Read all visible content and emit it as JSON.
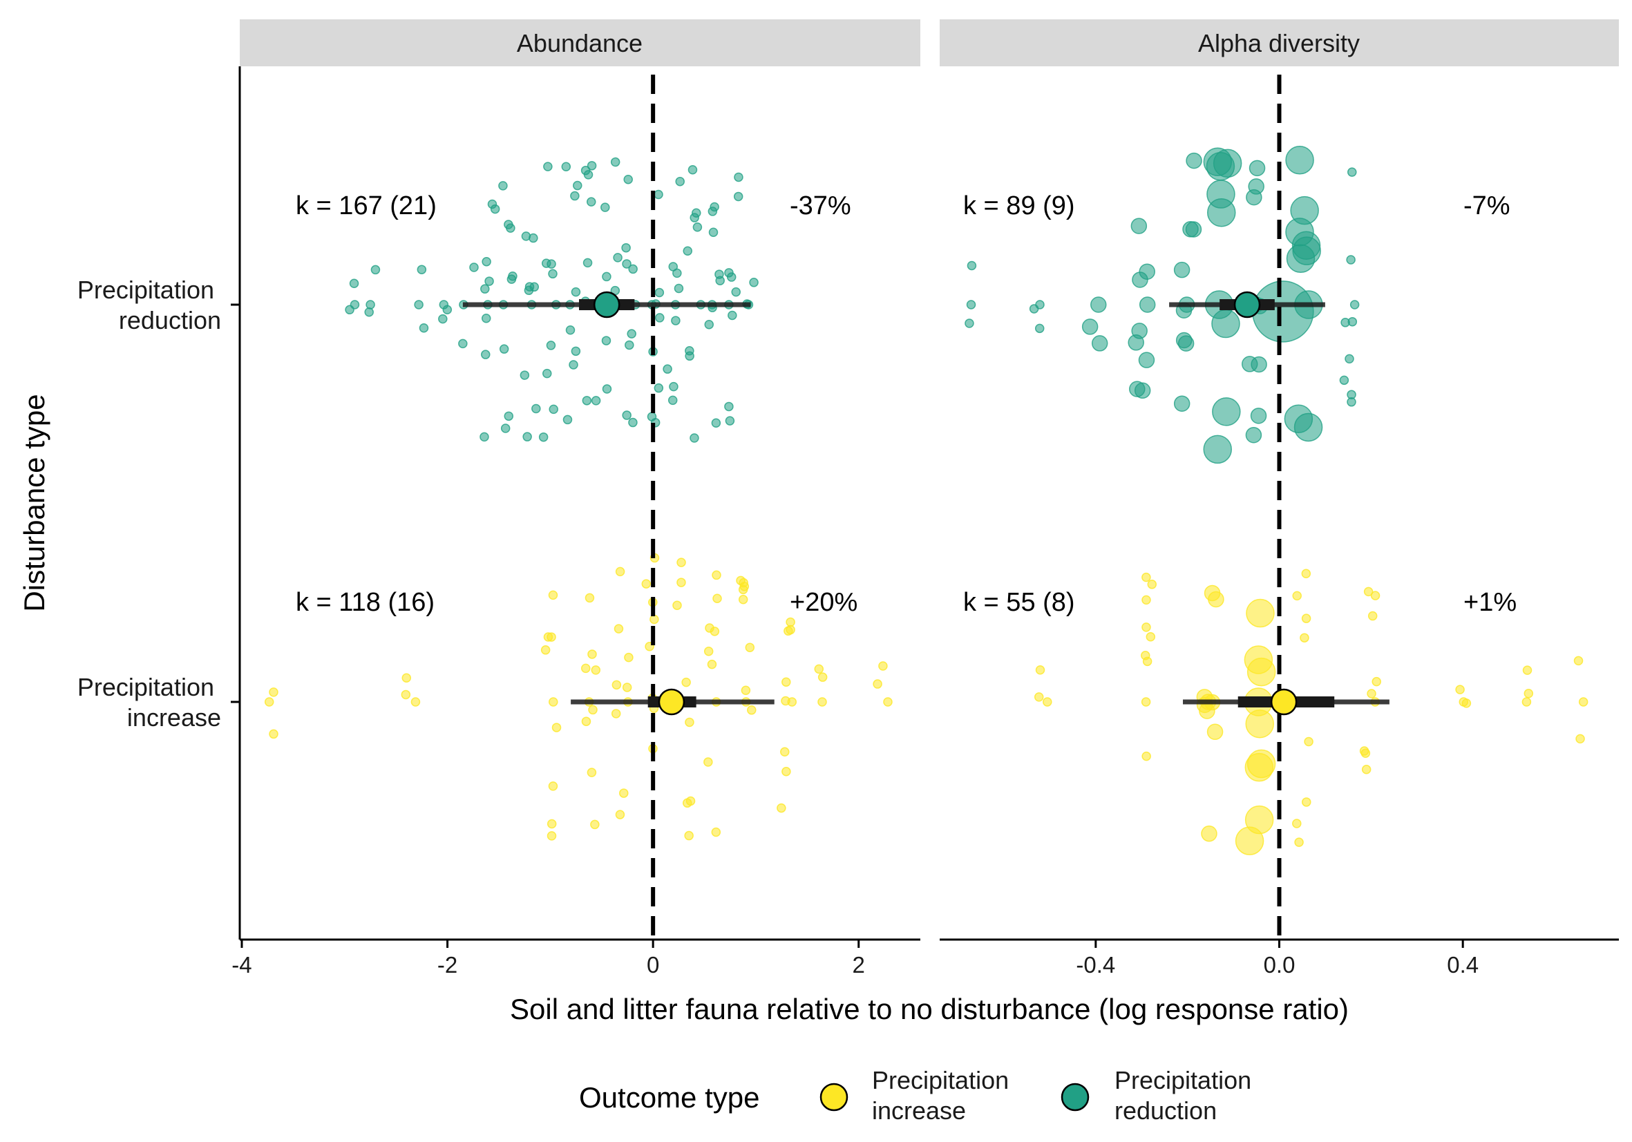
{
  "chart_data": {
    "type": "scatter",
    "subtype": "orchard plot (meta-analysis) with pooled estimate, confidence and prediction intervals",
    "xlabel": "Soil and litter fauna relative to no disturbance (log response ratio)",
    "ylabel": "Disturbance type",
    "y_categories": [
      "Precipitation reduction",
      "Precipitation increase"
    ],
    "y_category_lines": [
      [
        "Precipitation",
        "reduction"
      ],
      [
        "Precipitation",
        "increase"
      ]
    ],
    "grid": false,
    "legend": {
      "title": "Outcome type",
      "placement": "bottom",
      "entries": [
        {
          "label_lines": [
            "Precipitation",
            "increase"
          ],
          "color": "#FDE725"
        },
        {
          "label_lines": [
            "Precipitation",
            "reduction"
          ],
          "color": "#21A085"
        }
      ]
    },
    "colors": {
      "Precipitation reduction": "#21A085",
      "Precipitation increase": "#FDE725",
      "reference_line": "#000000",
      "interval": "#1a1a1a",
      "strip": "#d9d9d9"
    },
    "facets": [
      {
        "title": "Abundance",
        "xlim": [
          -4.02,
          2.6
        ],
        "xticks": [
          -4,
          -2,
          0,
          2
        ],
        "xtick_labels": [
          "-4",
          "-2",
          "0",
          "2"
        ],
        "reference_x": 0,
        "groups": [
          {
            "category": "Precipitation reduction",
            "k_label": "k = 167 (21)",
            "effect_label": "-37%",
            "estimate": -0.45,
            "ci": [
              -0.72,
              -0.18
            ],
            "pi": [
              -1.85,
              0.95
            ],
            "n_points": 167,
            "points_approx": [
              {
                "x": -2.9,
                "size": "small"
              },
              {
                "x": -2.75,
                "size": "small"
              },
              {
                "x": -2.25,
                "size": "small"
              },
              {
                "x": -2.0,
                "size": "small"
              },
              {
                "x": -1.8,
                "size": "small"
              },
              {
                "x": -1.6,
                "size": "small"
              },
              {
                "x": -1.4,
                "size": "small"
              },
              {
                "x": -1.2,
                "size": "small"
              },
              {
                "x": -1.0,
                "size": "small"
              },
              {
                "x": -0.8,
                "size": "small"
              },
              {
                "x": -0.6,
                "size": "small"
              },
              {
                "x": -0.4,
                "size": "small"
              },
              {
                "x": -0.2,
                "size": "small"
              },
              {
                "x": 0.0,
                "size": "small"
              },
              {
                "x": 0.2,
                "size": "small"
              },
              {
                "x": 0.4,
                "size": "small"
              },
              {
                "x": 0.6,
                "size": "small"
              },
              {
                "x": 0.8,
                "size": "small"
              },
              {
                "x": 0.95,
                "size": "small"
              }
            ]
          },
          {
            "category": "Precipitation increase",
            "k_label": "k = 118 (16)",
            "effect_label": "+20%",
            "estimate": 0.18,
            "ci": [
              -0.05,
              0.42
            ],
            "pi": [
              -0.8,
              1.18
            ],
            "n_points": 118,
            "points_approx": [
              {
                "x": -3.75,
                "size": "small"
              },
              {
                "x": -2.35,
                "size": "small"
              },
              {
                "x": -1.0,
                "size": "small"
              },
              {
                "x": -0.6,
                "size": "small"
              },
              {
                "x": -0.3,
                "size": "small"
              },
              {
                "x": 0.0,
                "size": "small"
              },
              {
                "x": 0.3,
                "size": "small"
              },
              {
                "x": 0.6,
                "size": "small"
              },
              {
                "x": 0.9,
                "size": "small"
              },
              {
                "x": 1.3,
                "size": "small"
              },
              {
                "x": 1.62,
                "size": "small"
              },
              {
                "x": 2.25,
                "size": "small"
              }
            ]
          }
        ]
      },
      {
        "title": "Alpha diversity",
        "xlim": [
          -0.74,
          0.74
        ],
        "xticks": [
          -0.4,
          0.0,
          0.4
        ],
        "xtick_labels": [
          "-0.4",
          "0.0",
          "0.4"
        ],
        "reference_x": 0,
        "groups": [
          {
            "category": "Precipitation reduction",
            "k_label": "k = 89 (9)",
            "effect_label": "-7%",
            "estimate": -0.07,
            "ci": [
              -0.13,
              -0.01
            ],
            "pi": [
              -0.24,
              0.1
            ],
            "n_points": 89,
            "points_approx": [
              {
                "x": -0.67,
                "size": "small"
              },
              {
                "x": -0.52,
                "size": "small"
              },
              {
                "x": -0.4,
                "size": "medium"
              },
              {
                "x": -0.3,
                "size": "medium"
              },
              {
                "x": -0.2,
                "size": "medium"
              },
              {
                "x": -0.12,
                "size": "large"
              },
              {
                "x": -0.05,
                "size": "medium"
              },
              {
                "x": 0.0,
                "size": "xlarge"
              },
              {
                "x": 0.05,
                "size": "large"
              },
              {
                "x": 0.15,
                "size": "small"
              }
            ]
          },
          {
            "category": "Precipitation increase",
            "k_label": "k = 55 (8)",
            "effect_label": "+1%",
            "estimate": 0.01,
            "ci": [
              -0.09,
              0.12
            ],
            "pi": [
              -0.21,
              0.24
            ],
            "n_points": 55,
            "points_approx": [
              {
                "x": -0.52,
                "size": "small"
              },
              {
                "x": -0.28,
                "size": "small"
              },
              {
                "x": -0.15,
                "size": "medium"
              },
              {
                "x": -0.05,
                "size": "large"
              },
              {
                "x": 0.05,
                "size": "small"
              },
              {
                "x": 0.2,
                "size": "small"
              },
              {
                "x": 0.4,
                "size": "small"
              },
              {
                "x": 0.55,
                "size": "small"
              },
              {
                "x": 0.66,
                "size": "small"
              }
            ]
          }
        ]
      }
    ]
  }
}
